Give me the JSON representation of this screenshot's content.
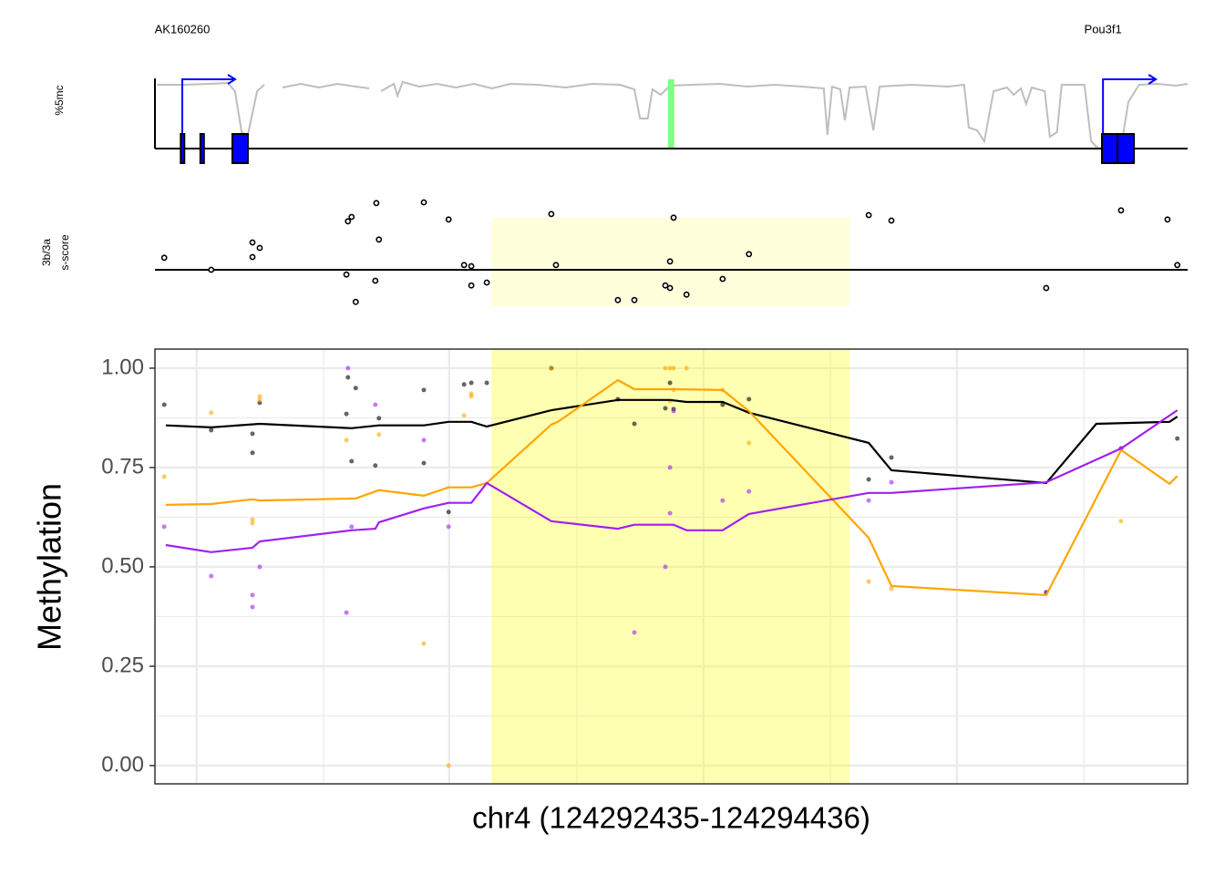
{
  "chart_data": [
    {
      "type": "gene_track",
      "ylabel": "%5mc",
      "xlim": [
        124292435,
        124294436
      ],
      "ylim": [
        0,
        1
      ],
      "color": "#bebebe",
      "gene_color": "#0000ff",
      "marker": [
        124293429,
        124293441
      ],
      "marker_color": "#80ff80",
      "genes": [
        {
          "name": "AK160260",
          "tss": 124292488,
          "exons": [
            [
              124292485,
              124292492
            ],
            [
              124292523,
              124292530
            ],
            [
              124292585,
              124292615
            ]
          ]
        },
        {
          "name": "Pou3f1",
          "tss": 124294272,
          "exons": [
            [
              124294270,
              124294300
            ],
            [
              124294300,
              124294332
            ]
          ]
        }
      ],
      "x": [
        124292439,
        124292488,
        124292541,
        124292576,
        124292590,
        124292603,
        124292615,
        124292633,
        124292647,
        124292665,
        124292682,
        124292718,
        124292753,
        124292788,
        124292824,
        124292850,
        124292861,
        124292873,
        124292898,
        124292905,
        124292915,
        124292947,
        124292982,
        124293018,
        124293053,
        124293088,
        124293124,
        124293177,
        124293230,
        124293283,
        124293336,
        124293364,
        124293375,
        124293390,
        124293399,
        124293415,
        124293433,
        124293477,
        124293530,
        124293583,
        124293636,
        124293689,
        124293731,
        124293738,
        124293747,
        124293763,
        124293772,
        124293781,
        124293812,
        124293827,
        124293839,
        124293901,
        124293971,
        124294003,
        124294012,
        124294028,
        124294042,
        124294060,
        124294086,
        124294099,
        124294113,
        124294123,
        124294134,
        124294159,
        124294169,
        124294183,
        124294192,
        124294236,
        124294249,
        124294263,
        124294293,
        124294311,
        124294321,
        124294342,
        124294378,
        124294413,
        124294436
      ],
      "values": [
        0.933,
        0.933,
        0.947,
        0.96,
        0.84,
        0.24,
        0.2,
        0.84,
        0.933,
        null,
        0.893,
        0.947,
        0.893,
        0.947,
        0.907,
        0.88,
        null,
        0.84,
        0.947,
        0.773,
        0.973,
        0.907,
        0.947,
        0.893,
        0.947,
        0.88,
        0.947,
        0.933,
        0.893,
        0.947,
        0.933,
        0.867,
        0.44,
        0.44,
        0.867,
        0.787,
        0.92,
        0.933,
        0.947,
        0.907,
        0.933,
        0.907,
        0.88,
        0.2,
        0.907,
        0.867,
        0.413,
        0.893,
        0.907,
        0.267,
        0.907,
        0.933,
        0.907,
        0.933,
        0.307,
        0.267,
        0.107,
        0.84,
        0.893,
        0.787,
        0.88,
        0.653,
        0.893,
        0.84,
        0.173,
        0.24,
        0.933,
        0.933,
        0.107,
        0,
        0.04,
        0.2,
        0.68,
        0.933,
        0.947,
        0.92,
        0.947
      ]
    },
    {
      "type": "scatter",
      "ylabel": [
        "3b/3a",
        "s-score"
      ],
      "xlim": [
        124292435,
        124294436
      ],
      "ylim": [
        -1,
        2
      ],
      "highlight": [
        124293087,
        124293781
      ],
      "highlight_color": "#ffffdc",
      "x": [
        124292453,
        124292544,
        124292624,
        124292638,
        124292624,
        124292806,
        124292809,
        124292816,
        124292824,
        124292862,
        124292864,
        124292869,
        124292956,
        124293004,
        124293034,
        124293048,
        124293048,
        124293078,
        124293203,
        124293212,
        124293332,
        124293364,
        124293424,
        124293433,
        124293433,
        124293440,
        124293465,
        124293535,
        124293586,
        124293818,
        124293862,
        124294162,
        124294307,
        124294397,
        124294416
      ],
      "values": [
        0.33,
        0,
        0.75,
        0.6,
        0.35,
        -0.13,
        1.33,
        1.45,
        -0.88,
        -0.3,
        1.83,
        0.83,
        1.85,
        1.38,
        0.13,
        0.1,
        -0.43,
        -0.35,
        1.53,
        0.13,
        -0.83,
        -0.83,
        -0.43,
        -0.5,
        0.23,
        1.43,
        -0.68,
        -0.25,
        0.43,
        1.5,
        1.35,
        -0.5,
        1.63,
        1.38,
        0.13
      ]
    },
    {
      "type": "scatter_fit",
      "ylabel": "Methylation",
      "xlabel": "chr4 (124292435-124294436)",
      "xlim": [
        124292435,
        124294436
      ],
      "ylim": [
        -0.046,
        1.048
      ],
      "yticks": [
        {
          "value": 0,
          "label": "0.00"
        },
        {
          "value": 0.25,
          "label": "0.25"
        },
        {
          "value": 0.5,
          "label": "0.50"
        },
        {
          "value": 0.75,
          "label": "0.75"
        },
        {
          "value": 1,
          "label": "1.00"
        }
      ],
      "yminor": [
        0.125,
        0.375,
        0.625,
        0.875
      ],
      "xticks": [
        124292516,
        124293005,
        124293498,
        124293989
      ],
      "xminor": [
        124292762,
        124293253,
        124293744,
        124294235
      ],
      "grid": true,
      "highlight": [
        124293087,
        124293781
      ],
      "highlight_color": "#ffff00",
      "series": [
        {
          "color": "#000000",
          "x": [
            124292453,
            124292544,
            124292624,
            124292624,
            124292638,
            124292806,
            124292809,
            124292816,
            124292824,
            124292862,
            124292869,
            124292956,
            124292956,
            124293004,
            124293034,
            124293048,
            124293078,
            124293203,
            124293332,
            124293364,
            124293424,
            124293433,
            124293440,
            124293535,
            124293586,
            124293818,
            124293862,
            124294162,
            124294307,
            124294416
          ],
          "values": [
            0.908,
            0.844,
            0.835,
            0.787,
            0.913,
            0.885,
            0.977,
            0.766,
            0.95,
            0.755,
            0.874,
            0.945,
            0.761,
            0.638,
            0.959,
            0.963,
            0.963,
            1.0,
            0.922,
            0.86,
            0.899,
            0.963,
            0.897,
            0.908,
            0.922,
            0.72,
            0.775,
            0.436,
            0.798,
            0.823
          ],
          "fit_x": [
            124292456,
            124292544,
            124292638,
            124292816,
            124292869,
            124292956,
            124293004,
            124293048,
            124293078,
            124293203,
            124293332,
            124293433,
            124293465,
            124293535,
            124293586,
            124293818,
            124293862,
            124294162,
            124294259,
            124294401,
            124294416
          ],
          "fit_values": [
            0.856,
            0.851,
            0.86,
            0.849,
            0.856,
            0.856,
            0.865,
            0.865,
            0.853,
            0.894,
            0.92,
            0.92,
            0.915,
            0.915,
            0.888,
            0.812,
            0.743,
            0.711,
            0.86,
            0.865,
            0.878
          ]
        },
        {
          "color": "#ffa500",
          "x": [
            124292453,
            124292544,
            124292624,
            124292624,
            124292638,
            124292638,
            124292806,
            124292869,
            124292956,
            124293004,
            124293034,
            124293048,
            124293048,
            124293203,
            124293424,
            124293433,
            124293440,
            124293465,
            124293440,
            124293433,
            124293535,
            124293586,
            124293818,
            124293862,
            124294307
          ],
          "values": [
            0.727,
            0.888,
            0.619,
            0.61,
            0.929,
            0.92,
            0.819,
            0.833,
            0.307,
            0,
            0.881,
            0.936,
            0.929,
            1.0,
            1.0,
            1.0,
            1.0,
            1.0,
            0.945,
            0.917,
            0.945,
            0.812,
            0.463,
            0.445,
            0.615
          ],
          "fit_x": [
            124292456,
            124292544,
            124292624,
            124292638,
            124292824,
            124292869,
            124292956,
            124293004,
            124293048,
            124293078,
            124293203,
            124293216,
            124293332,
            124293364,
            124293440,
            124293535,
            124293586,
            124293818,
            124293862,
            124294162,
            124294307,
            124294401,
            124294416
          ],
          "fit_values": [
            0.656,
            0.658,
            0.67,
            0.667,
            0.672,
            0.693,
            0.679,
            0.7,
            0.7,
            0.711,
            0.858,
            0.865,
            0.97,
            0.947,
            0.947,
            0.945,
            0.892,
            0.573,
            0.452,
            0.429,
            0.794,
            0.709,
            0.729
          ]
        },
        {
          "color": "#a020f0",
          "x": [
            124292453,
            124292544,
            124292624,
            124292624,
            124292638,
            124292806,
            124292809,
            124292816,
            124292862,
            124292956,
            124293004,
            124293364,
            124293424,
            124293433,
            124293433,
            124293440,
            124293535,
            124293586,
            124293818,
            124293862,
            124294162,
            124294307
          ],
          "values": [
            0.601,
            0.477,
            0.429,
            0.399,
            0.5,
            0.385,
            1.0,
            0.601,
            0.908,
            0.819,
            0.601,
            0.335,
            0.5,
            0.635,
            0.75,
            0.892,
            0.667,
            0.69,
            0.667,
            0.713,
            0.436,
            0.798
          ],
          "fit_x": [
            124292456,
            124292544,
            124292624,
            124292638,
            124292816,
            124292862,
            124292869,
            124292956,
            124293004,
            124293048,
            124293078,
            124293203,
            124293332,
            124293364,
            124293440,
            124293465,
            124293535,
            124293586,
            124293818,
            124293862,
            124294162,
            124294307,
            124294416
          ],
          "fit_values": [
            0.555,
            0.537,
            0.548,
            0.564,
            0.592,
            0.596,
            0.612,
            0.647,
            0.661,
            0.661,
            0.711,
            0.615,
            0.596,
            0.606,
            0.606,
            0.592,
            0.592,
            0.633,
            0.686,
            0.686,
            0.713,
            0.798,
            0.894
          ]
        }
      ]
    }
  ]
}
